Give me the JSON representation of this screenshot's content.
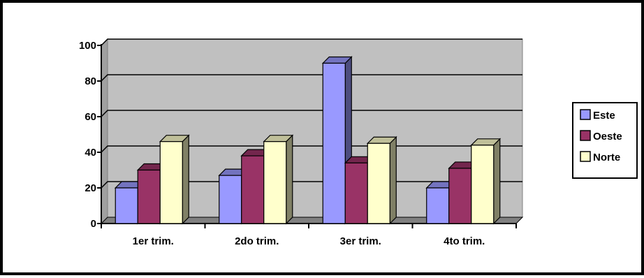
{
  "chart_data": {
    "type": "bar",
    "title": "",
    "xlabel": "",
    "ylabel": "",
    "categories": [
      "1er trim.",
      "2do trim.",
      "3er trim.",
      "4to trim."
    ],
    "series": [
      {
        "name": "Este",
        "values": [
          20,
          27,
          90,
          20
        ],
        "color": "#9999ff"
      },
      {
        "name": "Oeste",
        "values": [
          30,
          38,
          34,
          31
        ],
        "color": "#993366"
      },
      {
        "name": "Norte",
        "values": [
          46,
          46,
          45,
          44
        ],
        "color": "#ffffcc"
      }
    ],
    "ylim": [
      0,
      100
    ],
    "yticks": [
      0,
      20,
      40,
      60,
      80,
      100
    ],
    "grid": true,
    "legend": "right",
    "style": "3d-clustered-column",
    "colors": {
      "plot_back": "#c0c0c0",
      "floor": "#808080",
      "gridline": "#000000",
      "bar_outline": "#000000"
    }
  }
}
